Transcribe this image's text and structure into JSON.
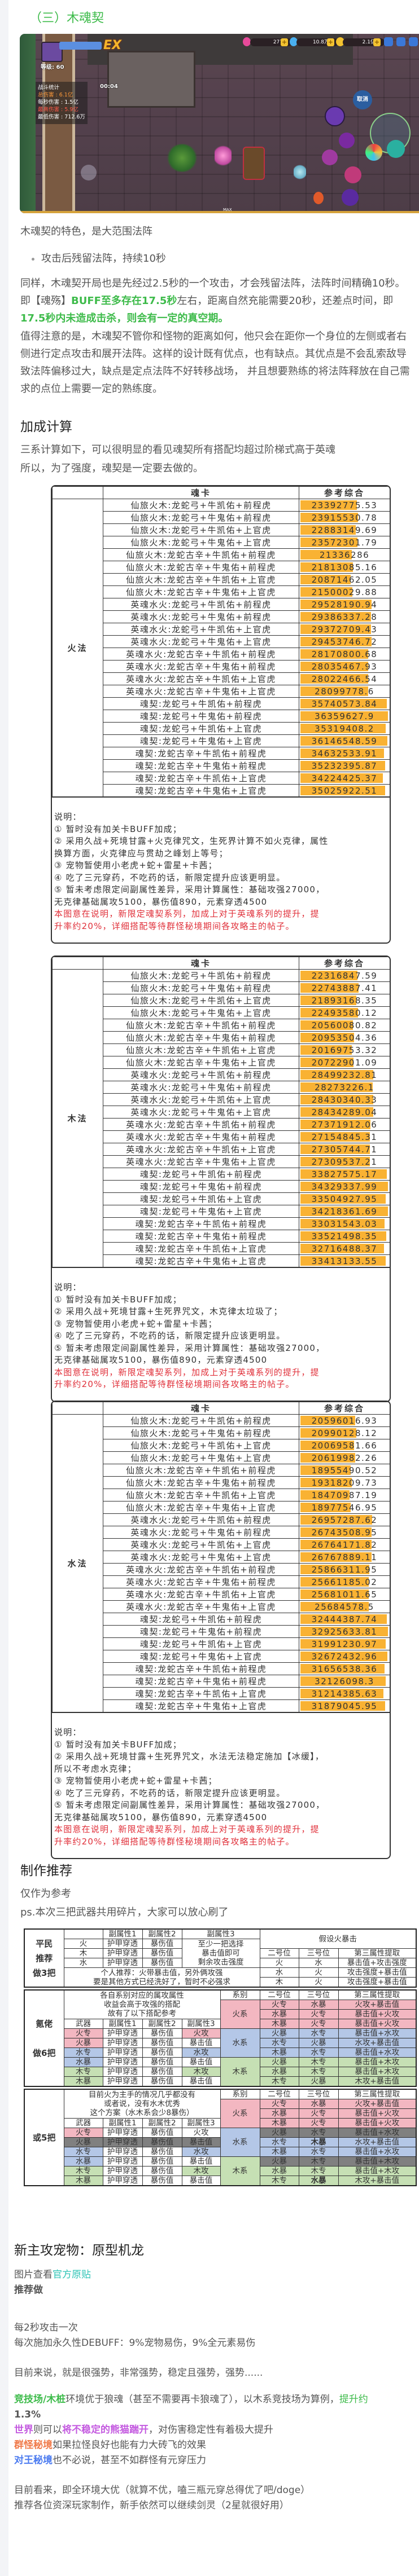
{
  "section_title": "（三）木魂契",
  "game_hud": {
    "level": "等级: 60",
    "stats_title": "战斗统计",
    "timer": "00:04",
    "total_damage": "总伤害 : 6.1亿",
    "dps": "每秒伤害 : 1.5亿",
    "max_damage": "最高伤害 : 5.9亿",
    "min_damage": "最低伤害 : 712.6万",
    "gems": "277",
    "diamonds": "10.8万",
    "gold": "2.1亿",
    "cancel": "取消",
    "ex_badge": "EX",
    "max_label": "MAX"
  },
  "intro": "木魂契的特色，是大范围法阵",
  "bullet": "攻击后残留法阵，持续10秒",
  "para1": {
    "a": "同样，木魂契开局也是先经过2.5秒的一个攻击，才会残留法阵，法阵时间精确10秒。",
    "b": "即【魂殇】",
    "c": "BUFF至多存在17.5秒",
    "d": "左右，距离自然充能需要20秒，还差点时间，即",
    "e": "17.5秒内未造成击杀，则会有一定的真空期。"
  },
  "para2": "值得注意的是，木魂契不管你和怪物的距离如何，他只会在距你一个身位的左侧或者右侧进行定点攻击和展开法阵。这样的设计既有优点，也有缺点。其优点是不会乱索敌导致法阵偏移过大，缺点是定点法阵不好转移战场， 并且想要熟练的将法阵释放在自己需求的点位上需要一定的熟练度。",
  "bonus_heading": "加成计算",
  "bonus_intro": [
    "三系计算如下，可以很明显的看见魂契所有搭配均超过阶梯式高于英魂",
    "所以，为了强度，魂契是一定要去做的。"
  ],
  "soul_cards": [
    "仙旅火木:龙蛇弓+牛凯佑+前程虎",
    "仙旅火木:龙蛇弓+牛鬼佑+前程虎",
    "仙旅火木:龙蛇弓+牛凯佑+上官虎",
    "仙旅火木:龙蛇弓+牛鬼佑+上官虎",
    "仙旅火木:龙蛇古辛+牛凯佑+前程虎",
    "仙旅火木:龙蛇古辛+牛鬼佑+前程虎",
    "仙旅火木:龙蛇古辛+牛凯佑+上官虎",
    "仙旅火木:龙蛇古辛+牛鬼佑+上官虎",
    "英魂水火:龙蛇弓+牛凯佑+前程虎",
    "英魂水火:龙蛇弓+牛鬼佑+前程虎",
    "英魂水火:龙蛇弓+牛凯佑+上官虎",
    "英魂水火:龙蛇弓+牛鬼佑+上官虎",
    "英魂水火:龙蛇古辛+牛凯佑+前程虎",
    "英魂水火:龙蛇古辛+牛鬼佑+前程虎",
    "英魂水火:龙蛇古辛+牛凯佑+上官虎",
    "英魂水火:龙蛇古辛+牛鬼佑+上官虎",
    "魂契:龙蛇弓+牛凯佑+前程虎",
    "魂契:龙蛇弓+牛鬼佑+前程虎",
    "魂契:龙蛇弓+牛凯佑+上官虎",
    "魂契:龙蛇弓+牛鬼佑+上官虎",
    "魂契:龙蛇古辛+牛凯佑+前程虎",
    "魂契:龙蛇古辛+牛鬼佑+前程虎",
    "魂契:龙蛇古辛+牛凯佑+上官虎",
    "魂契:龙蛇古辛+牛鬼佑+上官虎"
  ],
  "soul_tables": [
    {
      "label": "火法",
      "header_card": "魂卡",
      "header_value": "参考综合",
      "values": [
        "23392775.53",
        "23915530.78",
        "22883149.69",
        "23572301.79",
        "21336286",
        "21813085.16",
        "20871462.05",
        "21500029.88",
        "29528190.94",
        "29386337.28",
        "29372709.43",
        "29453746.72",
        "28170800.68",
        "28035467.93",
        "28022466.54",
        "28099778.6",
        "35740573.84",
        "36359627.9",
        "35319408.2",
        "36146548.59",
        "34632533.91",
        "35232395.87",
        "34224425.37",
        "35025922.51"
      ],
      "notes": [
        "说明：",
        "① 暂时没有加关卡BUFF加成；",
        "② 采用久战+死境甘露+火克律咒文，生死界计算不如火克律，属性",
        "换算方面，火克律应与贯劫之峰划上等号；",
        "③ 宠物暂使用小老虎+蛇+雷星+卡茜；",
        "④ 吃了三元穿药，不吃药的话，新限定提升应该更明显。",
        "⑤ 暂未考虑限定间副属性差异，采用计算属性：基础攻强27000，",
        "无克律基础属攻5100，暴伤值890，元素穿透4500"
      ],
      "red_notes": [
        "本图意在说明，新限定魂契系列，加成上对于英魂系列的提升，提",
        "升率约20%，详细搭配等待群怪秘境期间各攻略主的帖子。"
      ]
    },
    {
      "label": "木法",
      "header_card": "魂卡",
      "header_value": "参考综合",
      "values": [
        "22316847.59",
        "22743887.41",
        "21893168.35",
        "22493580.12",
        "20560080.82",
        "20953504.36",
        "20169753.32",
        "20722901.09",
        "28499232.81",
        "28273226.1",
        "28430340.33",
        "28434289.04",
        "27371912.06",
        "27154845.31",
        "27305744.71",
        "27309537.21",
        "33827575.17",
        "34329337.99",
        "33504927.95",
        "34218361.69",
        "33031543.03",
        "33521498.35",
        "32716488.37",
        "33413133.55"
      ],
      "notes": [
        "说明：",
        "① 暂时没有加关卡BUFF加成；",
        "② 采用久战+死境甘露+生死界咒文，木克律太垃圾了；",
        "③ 宠物暂使用小老虎+蛇+雷星+卡茜；",
        "④ 吃了三元穿药，不吃药的话，新限定提升应该更明显。",
        "⑤ 暂未考虑限定间副属性差异，采用计算属性：基础攻强27000，",
        "无克律基础属攻5100，暴伤值890，元素穿透4500"
      ],
      "red_notes": [
        "本图意在说明，新限定魂契系列，加成上对于英魂系列的提升，提",
        "升率约20%，详细搭配等待群怪秘境期间各攻略主的帖子。"
      ]
    },
    {
      "label": "水法",
      "header_card": "魂卡",
      "header_value": "参考综合",
      "values": [
        "20596016.93",
        "20990128.12",
        "20069581.66",
        "20619982.26",
        "18955490.52",
        "19318209.73",
        "18470987.19",
        "18977546.95",
        "26957287.62",
        "26743508.95",
        "26764171.82",
        "26767889.11",
        "25866311.95",
        "25661185.02",
        "25681011.65",
        "25684578.5",
        "32444387.74",
        "32925633.81",
        "31991230.97",
        "32672432.96",
        "31656538.36",
        "32126098.3",
        "31214385.63",
        "31879045.95"
      ],
      "notes": [
        "说明：",
        "① 暂时没有加关卡BUFF加成；",
        "② 采用久战+死境甘露+生死界咒文，水法无法稳定施加【冰缓】，",
        "所以不考虑水克律；",
        "③ 宠物暂使用小老虎+蛇+雷星+卡茜；",
        "④ 吃了三元穿药，不吃药的话，新限定提升应该更明显。",
        "⑤ 暂未考虑限定间副属性差异，采用计算属性：基础攻强27000，",
        "无克律基础属攻5100，暴伤值890，元素穿透4500"
      ],
      "red_notes": [
        "本图意在说明，新限定魂契系列，加成上对于英魂系列的提升，提",
        "升率约20%，详细搭配等待群怪秘境期间各攻略主的帖子。"
      ]
    }
  ],
  "craft": {
    "heading": "制作推荐",
    "note1": "仅作为参考",
    "note2": "ps.本次三把武器共用碎片，大家可以放心刷了",
    "basic": {
      "label": "平民\n推荐\n做3把",
      "sub_headers": [
        "副属性1",
        "副属性2",
        "副属性3"
      ],
      "assume": "假设火暴击",
      "rows": [
        [
          "火",
          "护甲穿透",
          "暴伤值"
        ],
        [
          "木",
          "护甲穿透",
          "暴伤值"
        ],
        [
          "水",
          "护甲穿透",
          "暴伤值"
        ]
      ],
      "sub3_text": [
        "至少一把选择",
        "暴击值即可",
        "剩余攻击强度"
      ],
      "personal": [
        "个人推荐：火带暴击值，另外俩攻强",
        "要是其他方式已经洗好了，暂时不必强求"
      ],
      "pos_headers": [
        "二号位",
        "三号位",
        "第三属性提取"
      ],
      "pos_rows": [
        [
          "火",
          "水",
          "暴击值+攻击强度"
        ],
        [
          "水",
          "火",
          "攻击强度+暴击值"
        ],
        [
          "木",
          "火",
          "攻击强度+暴击值"
        ]
      ]
    },
    "plans": [
      {
        "label": "氪佬\n\n做6把",
        "intro": [
          "各自系别对应的属攻属性",
          "收益会高于攻强的搭配",
          "故有了以下搭配参考"
        ],
        "weapon_headers": [
          "武器",
          "副属性1",
          "副属性2",
          "副属性3"
        ],
        "weapons": [
          {
            "w": "火专",
            "a": "护甲穿透",
            "b": "暴伤值",
            "c": "火攻",
            "wc": "pk",
            "cc": "pk",
            "rc": ""
          },
          {
            "w": "火暴",
            "a": "护甲穿透",
            "b": "暴伤值",
            "c": "暴击值",
            "wc": "pk",
            "cc": "",
            "rc": ""
          },
          {
            "w": "水专",
            "a": "护甲穿透",
            "b": "暴伤值",
            "c": "水攻",
            "wc": "bl",
            "cc": "bl",
            "rc": ""
          },
          {
            "w": "水暴",
            "a": "护甲穿透",
            "b": "暴伤值",
            "c": "暴击值",
            "wc": "bl",
            "cc": "",
            "rc": ""
          },
          {
            "w": "木专",
            "a": "护甲穿透",
            "b": "暴伤值",
            "c": "木攻",
            "wc": "gr",
            "cc": "gr",
            "rc": ""
          },
          {
            "w": "木暴",
            "a": "护甲穿透",
            "b": "暴伤值",
            "c": "暴击值",
            "wc": "gr",
            "cc": "",
            "rc": ""
          }
        ],
        "pos_headers": [
          "系别",
          "二号位",
          "三号位",
          "第三属性提取"
        ],
        "groups": [
          {
            "name": "火系",
            "cls": "pk",
            "rows": [
              {
                "p2": "火专",
                "p3": "水暴",
                "x": "火攻+暴击值"
              },
              {
                "p2": "水暴",
                "p3": "火专",
                "x": "暴击值+火攻"
              },
              {
                "p2": "木暴",
                "p3": "火专",
                "x": "暴击值+火攻"
              }
            ]
          },
          {
            "name": "水系",
            "cls": "bl",
            "rows": [
              {
                "p2": "火暴",
                "p3": "水专",
                "x": "暴击值+水攻"
              },
              {
                "p2": "水专",
                "p3": "火暴",
                "x": "水攻+暴击值"
              },
              {
                "p2": "木暴",
                "p3": "水专",
                "x": "暴击值+水攻"
              }
            ]
          },
          {
            "name": "木系",
            "cls": "gr",
            "rows": [
              {
                "p2": "火暴",
                "p3": "木专",
                "x": "暴击值+木攻"
              },
              {
                "p2": "水暴",
                "p3": "木专",
                "x": "暴击值+木攻"
              },
              {
                "p2": "木专",
                "p3": "火暴",
                "x": "木攻+暴击值"
              }
            ]
          }
        ]
      },
      {
        "label": "或5把",
        "intro": [
          "目前火为主手的情况几乎都没有",
          "或者说，没有水木优秀",
          "这个方案（水木系会少8暴伤）"
        ],
        "weapon_headers": [
          "武器",
          "副属性1",
          "副属性2",
          "副属性3"
        ],
        "weapons": [
          {
            "w": "火专",
            "a": "护甲穿透",
            "b": "暴伤值",
            "c": "火攻",
            "wc": "pk",
            "cc": "",
            "rc": ""
          },
          {
            "w": "火暴",
            "a": "护甲穿透",
            "b": "暴伤值",
            "c": "暴击值",
            "wc": "dk",
            "cc": "dk",
            "rc": "dk"
          },
          {
            "w": "水专",
            "a": "护甲穿透",
            "b": "暴伤值",
            "c": "水攻",
            "wc": "bl",
            "cc": "bl",
            "rc": ""
          },
          {
            "w": "水暴",
            "a": "护甲穿透",
            "b": "暴伤值",
            "c": "暴击值",
            "wc": "bl",
            "cc": "",
            "rc": ""
          },
          {
            "w": "木专",
            "a": "护甲穿透",
            "b": "暴伤值",
            "c": "木攻",
            "wc": "gr",
            "cc": "gr",
            "rc": ""
          },
          {
            "w": "木暴",
            "a": "护甲穿透",
            "b": "暴伤值",
            "c": "暴击值",
            "wc": "gr",
            "cc": "",
            "rc": ""
          }
        ],
        "pos_headers": [
          "系别",
          "二号位",
          "三号位",
          "第三属性提取"
        ],
        "groups": [
          {
            "name": "火系",
            "cls": "pk",
            "rows": [
              {
                "p2": "火专",
                "p3": "水暴",
                "x": "火攻+暴击值"
              },
              {
                "p2": "水暴",
                "p3": "火专",
                "x": "暴击值+火攻"
              },
              {
                "p2": "木暴",
                "p3": "火专",
                "x": "暴击值+火攻"
              }
            ]
          },
          {
            "name": "水系",
            "cls": "bl",
            "rows": [
              {
                "p2": "火暴",
                "p3": "水专",
                "x": "暴击值+水攻",
                "dark": true
              },
              {
                "p2": "水专",
                "p3": "木暴",
                "x": "水攻+暴击值",
                "red3": true
              },
              {
                "p2": "木暴",
                "p3": "水专",
                "x": "暴击值+水攻"
              }
            ]
          },
          {
            "name": "木系",
            "cls": "gr",
            "rows": [
              {
                "p2": "火暴",
                "p3": "木专",
                "x": "暴击值+木攻",
                "dark": true
              },
              {
                "p2": "水暴",
                "p3": "木专",
                "x": "暴击值+木攻"
              },
              {
                "p2": "木专",
                "p3": "水暴",
                "x": "木攻+暴击值",
                "red3": true
              }
            ]
          }
        ]
      }
    ]
  },
  "pet": {
    "heading": "新主攻宠物：原型机龙",
    "view_prefix": "图片查看",
    "view_link": "官方原贴",
    "recommend": "推荐做",
    "attack": "每2秒攻击一次",
    "debuff": "每次施加永久性DEBUFF：9%宠物易伤，9%全元素易伤",
    "strong": "目前来说，就是很强势，非常强势，稳定且强势，强势......",
    "arena_hl": "竞技场/木桩",
    "arena_text": "环境优于狼魂（甚至不需要再卡狼魂了），以木系竞技场为算例，",
    "arena_up": "提升约",
    "arena_pct": "1.3%",
    "world_hl": "世界",
    "world_mid": "则可以",
    "world_hl2": "将不稳定的熊猫踹开",
    "world_text": "，对伤害稳定性有着极大提升",
    "mob_hl": "群怪秘境",
    "mob_text": "如果拉怪良好也能有力大砖飞的效果",
    "boss_hl": "对王秘境",
    "boss_text": "也不必说，甚至不如群怪有元穿压力",
    "concl1": "目前看来，即全环境大优（就算不优，嗑三瓶元穿总得优了吧/doge）",
    "concl2": "推荐各位资深玩家制作，新手依然可以继续剑灵（2星就很好用）"
  },
  "colors": {
    "accent_green": "#3dbb4a",
    "bar_orange": "#f9b233",
    "note_red": "#e0303a",
    "fire": "#f3b7c1",
    "water": "#b4c7e7",
    "wood": "#c6e0b4",
    "unused": "#808080",
    "link_teal": "#2ec4b6",
    "recommend_red": "#f04848"
  }
}
